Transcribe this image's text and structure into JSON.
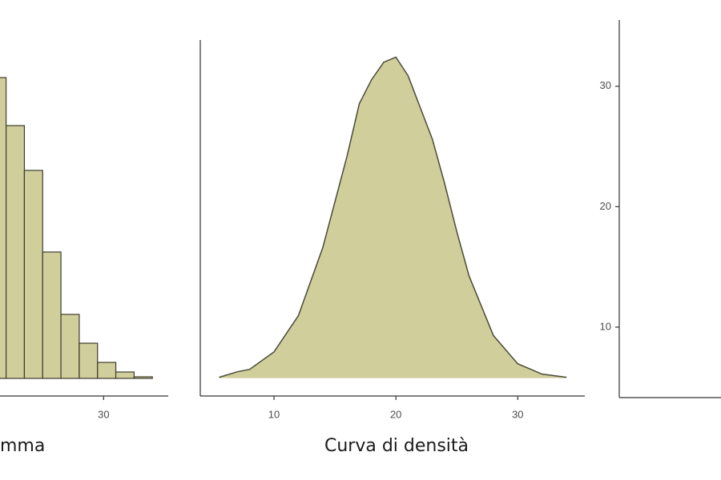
{
  "chart_data": [
    {
      "type": "histogram",
      "x_label": "mma",
      "color": "#d0ce9a",
      "edge_color": "#3c3c2e",
      "bins": [
        20.5,
        22,
        23.5,
        25,
        26.5,
        28,
        29.5,
        31,
        32.5,
        34
      ],
      "values": [
        188,
        158,
        130,
        79,
        40,
        22,
        10,
        4,
        1
      ],
      "xlim": [
        21.5,
        35.3
      ],
      "xticks": [
        30
      ],
      "ylim": [
        -11,
        200
      ]
    },
    {
      "type": "density",
      "x_label": "Curva di densità",
      "color": "#d0ce9a",
      "edge_color": "#4a4a3a",
      "x": [
        5.5,
        7,
        8,
        10,
        12,
        14,
        16,
        17,
        18,
        19,
        20,
        21,
        22,
        23,
        24,
        25,
        26,
        28,
        30,
        32,
        34
      ],
      "values": [
        0.0002,
        0.0016,
        0.0022,
        0.0066,
        0.0157,
        0.0328,
        0.0559,
        0.069,
        0.075,
        0.0794,
        0.0807,
        0.076,
        0.068,
        0.06,
        0.0489,
        0.0368,
        0.0257,
        0.0107,
        0.0036,
        0.001,
        0.0002
      ],
      "xlim": [
        3.95,
        35.5
      ],
      "xticks": [
        10,
        20,
        30
      ],
      "ylim": [
        -0.0045,
        0.085
      ]
    },
    {
      "type": "scatter",
      "ylim": [
        4.15,
        35.5
      ],
      "yticks": [
        10,
        20,
        30
      ]
    }
  ]
}
